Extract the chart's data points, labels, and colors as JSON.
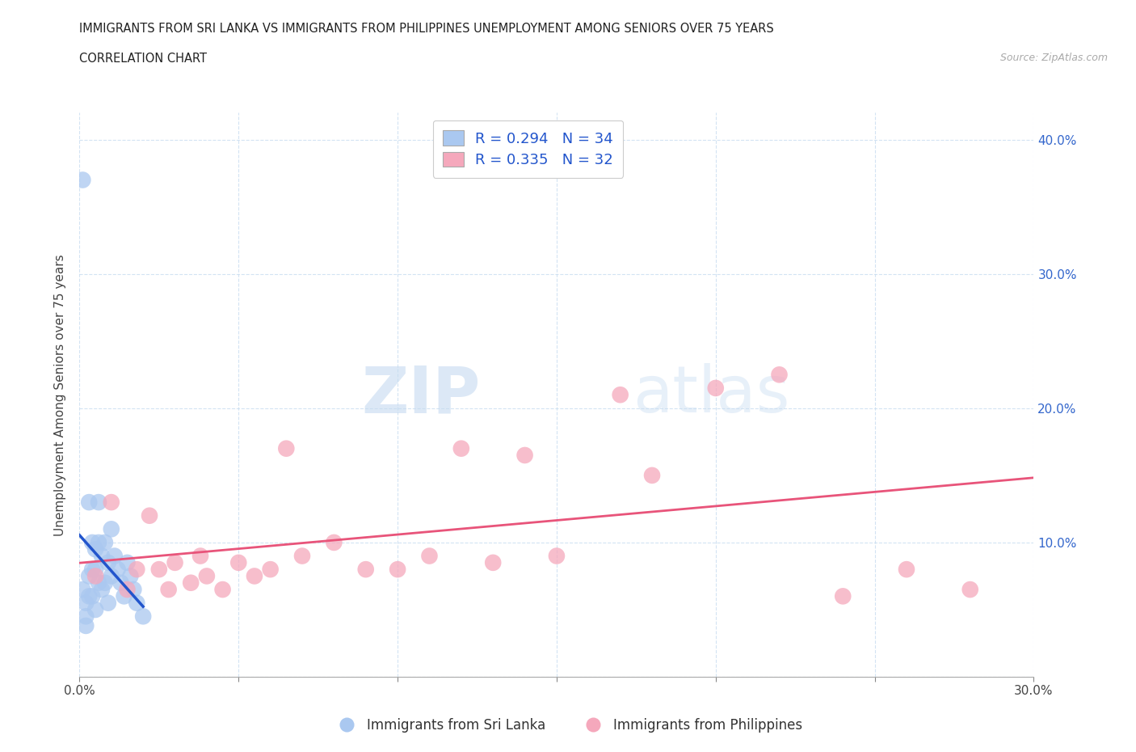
{
  "title_line1": "IMMIGRANTS FROM SRI LANKA VS IMMIGRANTS FROM PHILIPPINES UNEMPLOYMENT AMONG SENIORS OVER 75 YEARS",
  "title_line2": "CORRELATION CHART",
  "source": "Source: ZipAtlas.com",
  "ylabel": "Unemployment Among Seniors over 75 years",
  "xlim": [
    0.0,
    0.3
  ],
  "ylim": [
    0.0,
    0.42
  ],
  "xticks": [
    0.0,
    0.05,
    0.1,
    0.15,
    0.2,
    0.25,
    0.3
  ],
  "yticks": [
    0.0,
    0.1,
    0.2,
    0.3,
    0.4
  ],
  "ytick_labels": [
    "",
    "10.0%",
    "20.0%",
    "30.0%",
    "40.0%"
  ],
  "xtick_labels": [
    "0.0%",
    "",
    "",
    "",
    "",
    "",
    "30.0%"
  ],
  "sri_lanka_color": "#aac8f0",
  "philippines_color": "#f5a8bc",
  "sri_lanka_line_color": "#2255cc",
  "philippines_line_color": "#e8547a",
  "watermark_zip": "ZIP",
  "watermark_atlas": "atlas",
  "R_sri_lanka": 0.294,
  "N_sri_lanka": 34,
  "R_philippines": 0.335,
  "N_philippines": 32,
  "sri_lanka_x": [
    0.001,
    0.001,
    0.002,
    0.002,
    0.002,
    0.003,
    0.003,
    0.003,
    0.004,
    0.004,
    0.004,
    0.005,
    0.005,
    0.005,
    0.006,
    0.006,
    0.006,
    0.007,
    0.007,
    0.008,
    0.008,
    0.009,
    0.009,
    0.01,
    0.01,
    0.011,
    0.012,
    0.013,
    0.014,
    0.015,
    0.016,
    0.017,
    0.018,
    0.02
  ],
  "sri_lanka_y": [
    0.37,
    0.065,
    0.055,
    0.045,
    0.038,
    0.13,
    0.075,
    0.06,
    0.1,
    0.08,
    0.06,
    0.095,
    0.08,
    0.05,
    0.13,
    0.1,
    0.07,
    0.09,
    0.065,
    0.1,
    0.07,
    0.085,
    0.055,
    0.11,
    0.075,
    0.09,
    0.08,
    0.07,
    0.06,
    0.085,
    0.075,
    0.065,
    0.055,
    0.045
  ],
  "philippines_x": [
    0.005,
    0.01,
    0.015,
    0.018,
    0.022,
    0.025,
    0.028,
    0.03,
    0.035,
    0.038,
    0.04,
    0.045,
    0.05,
    0.055,
    0.06,
    0.065,
    0.07,
    0.08,
    0.09,
    0.1,
    0.11,
    0.12,
    0.13,
    0.14,
    0.15,
    0.17,
    0.18,
    0.2,
    0.22,
    0.24,
    0.26,
    0.28
  ],
  "philippines_y": [
    0.075,
    0.13,
    0.065,
    0.08,
    0.12,
    0.08,
    0.065,
    0.085,
    0.07,
    0.09,
    0.075,
    0.065,
    0.085,
    0.075,
    0.08,
    0.17,
    0.09,
    0.1,
    0.08,
    0.08,
    0.09,
    0.17,
    0.085,
    0.165,
    0.09,
    0.21,
    0.15,
    0.215,
    0.225,
    0.06,
    0.08,
    0.065
  ]
}
